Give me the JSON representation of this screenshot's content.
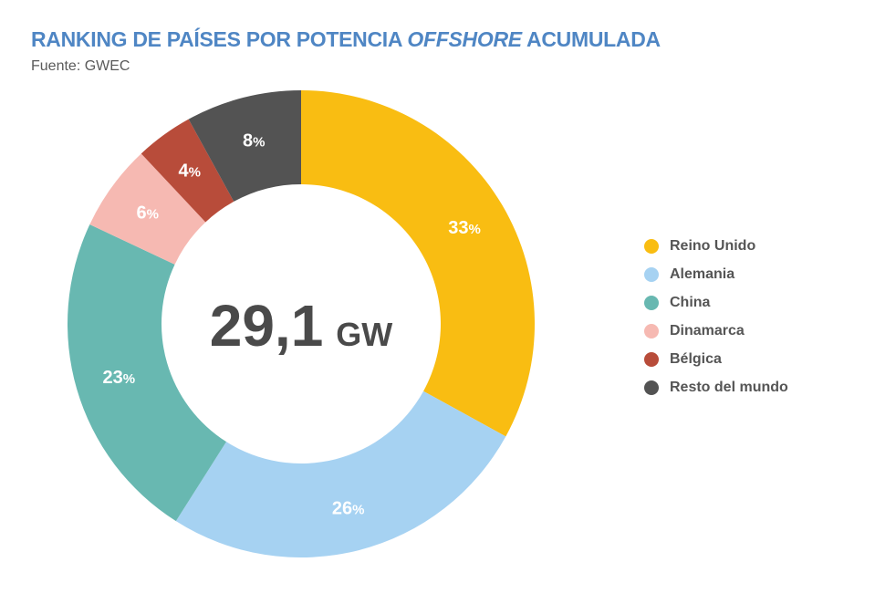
{
  "header": {
    "title_part1": "RANKING DE PAÍSES POR POTENCIA ",
    "title_emph": "OFFSHORE",
    "title_part2": " ACUMULADA",
    "source": "Fuente: GWEC"
  },
  "center_label": {
    "value": "29,1",
    "unit": "GW"
  },
  "chart_data": {
    "type": "pie",
    "variant": "donut",
    "total_value": 29.1,
    "total_unit": "GW",
    "legend_position": "right",
    "categories": [
      "Reino Unido",
      "Alemania",
      "China",
      "Dinamarca",
      "Bélgica",
      "Resto del mundo"
    ],
    "values": [
      33,
      26,
      23,
      6,
      4,
      8
    ],
    "value_suffix": "%",
    "colors": [
      "#f9bd12",
      "#a6d2f2",
      "#68b8b1",
      "#f6b9b2",
      "#b84c3a",
      "#535353"
    ]
  }
}
